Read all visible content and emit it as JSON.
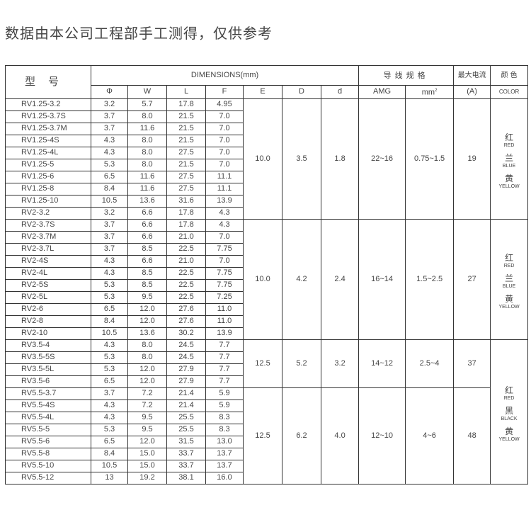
{
  "title": "数据由本公司工程部手工测得，仅供参考",
  "headers": {
    "model": "型号",
    "dimensions": "DIMENSIONS(mm)",
    "wire_spec": "导线规格",
    "max_current": "最大电流",
    "current_unit": "(A)",
    "color_cn": "颜 色",
    "color_en": "COLOR",
    "phi": "Φ",
    "W": "W",
    "L": "L",
    "F": "F",
    "E": "E",
    "D": "D",
    "d": "d",
    "amg": "AMG",
    "mm": "mm",
    "mm_sup": "2"
  },
  "rows": [
    [
      "RV1.25-3.2",
      "3.2",
      "5.7",
      "17.8",
      "4.95"
    ],
    [
      "RV1.25-3.7S",
      "3.7",
      "8.0",
      "21.5",
      "7.0"
    ],
    [
      "RV1.25-3.7M",
      "3.7",
      "11.6",
      "21.5",
      "7.0"
    ],
    [
      "RV1.25-4S",
      "4.3",
      "8.0",
      "21.5",
      "7.0"
    ],
    [
      "RV1.25-4L",
      "4.3",
      "8.0",
      "27.5",
      "7.0"
    ],
    [
      "RV1.25-5",
      "5.3",
      "8.0",
      "21.5",
      "7.0"
    ],
    [
      "RV1.25-6",
      "6.5",
      "11.6",
      "27.5",
      "11.1"
    ],
    [
      "RV1.25-8",
      "8.4",
      "11.6",
      "27.5",
      "11.1"
    ],
    [
      "RV1.25-10",
      "10.5",
      "13.6",
      "31.6",
      "13.9"
    ],
    [
      "RV2-3.2",
      "3.2",
      "6.6",
      "17.8",
      "4.3"
    ],
    [
      "RV2-3.7S",
      "3.7",
      "6.6",
      "17.8",
      "4.3"
    ],
    [
      "RV2-3.7M",
      "3.7",
      "6.6",
      "21.0",
      "7.0"
    ],
    [
      "RV2-3.7L",
      "3.7",
      "8.5",
      "22.5",
      "7.75"
    ],
    [
      "RV2-4S",
      "4.3",
      "6.6",
      "21.0",
      "7.0"
    ],
    [
      "RV2-4L",
      "4.3",
      "8.5",
      "22.5",
      "7.75"
    ],
    [
      "RV2-5S",
      "5.3",
      "8.5",
      "22.5",
      "7.75"
    ],
    [
      "RV2-5L",
      "5.3",
      "9.5",
      "22.5",
      "7.25"
    ],
    [
      "RV2-6",
      "6.5",
      "12.0",
      "27.6",
      "11.0"
    ],
    [
      "RV2-8",
      "8.4",
      "12.0",
      "27.6",
      "11.0"
    ],
    [
      "RV2-10",
      "10.5",
      "13.6",
      "30.2",
      "13.9"
    ],
    [
      "RV3.5-4",
      "4.3",
      "8.0",
      "24.5",
      "7.7"
    ],
    [
      "RV3.5-5S",
      "5.3",
      "8.0",
      "24.5",
      "7.7"
    ],
    [
      "RV3.5-5L",
      "5.3",
      "12.0",
      "27.9",
      "7.7"
    ],
    [
      "RV3.5-6",
      "6.5",
      "12.0",
      "27.9",
      "7.7"
    ],
    [
      "RV5.5-3.7",
      "3.7",
      "7.2",
      "21.4",
      "5.9"
    ],
    [
      "RV5.5-4S",
      "4.3",
      "7.2",
      "21.4",
      "5.9"
    ],
    [
      "RV5.5-4L",
      "4.3",
      "9.5",
      "25.5",
      "8.3"
    ],
    [
      "RV5.5-5",
      "5.3",
      "9.5",
      "25.5",
      "8.3"
    ],
    [
      "RV5.5-6",
      "6.5",
      "12.0",
      "31.5",
      "13.0"
    ],
    [
      "RV5.5-8",
      "8.4",
      "15.0",
      "33.7",
      "13.7"
    ],
    [
      "RV5.5-10",
      "10.5",
      "15.0",
      "33.7",
      "13.7"
    ],
    [
      "RV5.5-12",
      "13",
      "19.2",
      "38.1",
      "16.0"
    ]
  ],
  "groups": [
    {
      "rows": 10,
      "E": "10.0",
      "D": "3.5",
      "d": "1.8",
      "amg": "22~16",
      "mm2": "0.75~1.5",
      "current": "19"
    },
    {
      "rows": 10,
      "E": "10.0",
      "D": "4.2",
      "d": "2.4",
      "amg": "16~14",
      "mm2": "1.5~2.5",
      "current": "27"
    },
    {
      "rows": 4,
      "E": "12.5",
      "D": "5.2",
      "d": "3.2",
      "amg": "14~12",
      "mm2": "2.5~4",
      "current": "37"
    },
    {
      "rows": 8,
      "E": "12.5",
      "D": "6.2",
      "d": "4.0",
      "amg": "12~10",
      "mm2": "4~6",
      "current": "48"
    }
  ],
  "color_groups": [
    {
      "rows": 10,
      "colors": [
        {
          "cn": "红",
          "en": "RED"
        },
        {
          "cn": "兰",
          "en": "BLUE"
        },
        {
          "cn": "黄",
          "en": "YELLOW"
        }
      ]
    },
    {
      "rows": 10,
      "colors": [
        {
          "cn": "红",
          "en": "RED"
        },
        {
          "cn": "兰",
          "en": "BLUE"
        },
        {
          "cn": "黄",
          "en": "YELLOW"
        }
      ]
    },
    {
      "rows": 12,
      "colors": [
        {
          "cn": "红",
          "en": "RED"
        },
        {
          "cn": "黑",
          "en": "BLACK"
        },
        {
          "cn": "黄",
          "en": "YELLOW"
        }
      ]
    }
  ]
}
